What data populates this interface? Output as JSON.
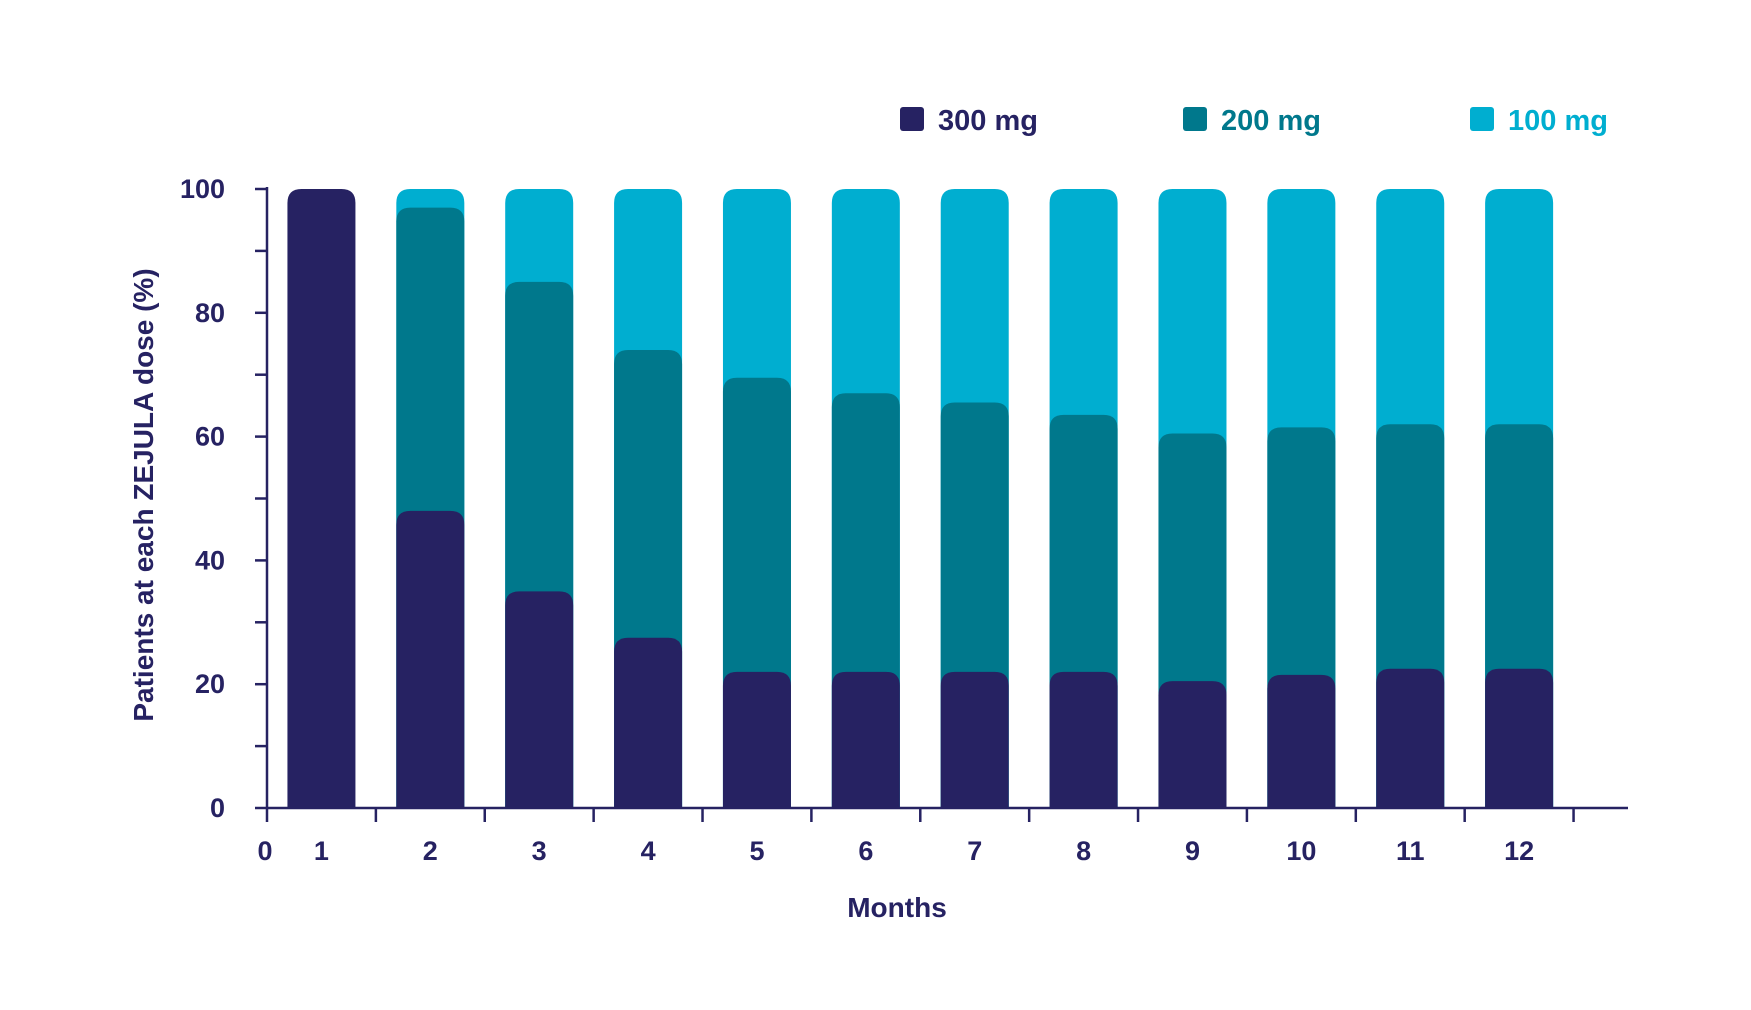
{
  "chart_data": {
    "type": "bar",
    "stacked": true,
    "title": "",
    "xlabel": "Months",
    "ylabel": "Patients at each ZEJULA dose (%)",
    "ylim": [
      0,
      100
    ],
    "yticks": [
      "0",
      "20",
      "40",
      "60",
      "80",
      "100"
    ],
    "x_origin_label": "0",
    "categories": [
      "1",
      "2",
      "3",
      "4",
      "5",
      "6",
      "7",
      "8",
      "9",
      "10",
      "11",
      "12"
    ],
    "series": [
      {
        "name": "300 mg",
        "color": "#262262",
        "values": [
          100,
          48,
          35,
          27.5,
          22,
          22,
          22,
          22,
          20.5,
          21.5,
          22.5,
          22.5
        ]
      },
      {
        "name": "200 mg",
        "color": "#00788c",
        "values": [
          0,
          49,
          50,
          46.5,
          47.5,
          45,
          43.5,
          41.5,
          40,
          40,
          39.5,
          39.5
        ]
      },
      {
        "name": "100 mg",
        "color": "#00aed0",
        "values": [
          0,
          3,
          15,
          26,
          30.5,
          33,
          34.5,
          36.5,
          39.5,
          38.5,
          38,
          38
        ]
      }
    ],
    "legend_position": "top-right",
    "grid": false
  }
}
